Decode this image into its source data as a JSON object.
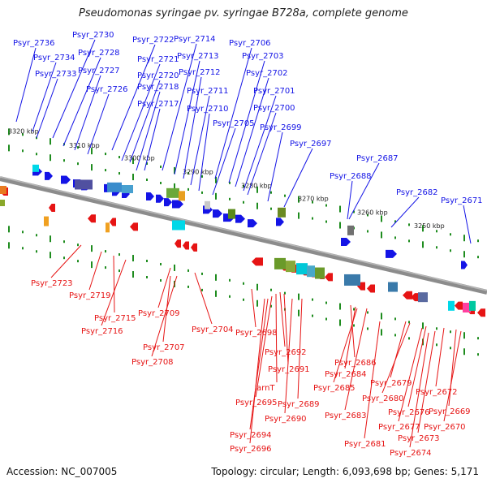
{
  "title": "Pseudomonas syringae pv. syringae B728a, complete genome",
  "footer": {
    "accession": "Accession: NC_007005",
    "summary": "Topology: circular; Length: 6,093,698 bp; Genes: 5,171"
  },
  "ruler": [
    "3320 kbp",
    "3310 kbp",
    "3300 kbp",
    "3290 kbp",
    "3280 kbp",
    "3270 kbp",
    "3260 kbp",
    "3250 kbp"
  ],
  "top_labels": [
    "Psyr_2736",
    "Psyr_2730",
    "Psyr_2722",
    "Psyr_2714",
    "Psyr_2706",
    "Psyr_2734",
    "Psyr_2728",
    "Psyr_2721",
    "Psyr_2713",
    "Psyr_2703",
    "Psyr_2727",
    "Psyr_2720",
    "Psyr_2712",
    "Psyr_2702",
    "Psyr_2733",
    "Psyr_2726",
    "Psyr_2718",
    "Psyr_2711",
    "Psyr_2701",
    "Psyr_2717",
    "Psyr_2710",
    "Psyr_2700",
    "Psyr_2705",
    "Psyr_2699",
    "Psyr_2697",
    "Psyr_2687",
    "Psyr_2688",
    "Psyr_2682",
    "Psyr_2671"
  ],
  "bottom_labels": [
    "Psyr_2723",
    "Psyr_2719",
    "Psyr_2715",
    "Psyr_2716",
    "Psyr_2709",
    "Psyr_2704",
    "Psyr_2707",
    "Psyr_2708",
    "Psyr_2698",
    "Psyr_2692",
    "Psyr_2691",
    "arnT",
    "Psyr_2695",
    "Psyr_2689",
    "Psyr_2690",
    "Psyr_2694",
    "Psyr_2696",
    "Psyr_2686",
    "Psyr_2684",
    "Psyr_2685",
    "Psyr_2683",
    "Psyr_2679",
    "Psyr_2680",
    "Psyr_2676",
    "Psyr_2677",
    "Psyr_2672",
    "Psyr_2669",
    "Psyr_2670",
    "Psyr_2673",
    "Psyr_2674",
    "Psyr_2681"
  ],
  "colors": {
    "forward": "#1414e6",
    "reverse": "#e61414",
    "backbone": "#8c8c8c",
    "tick": "#1e8c1e",
    "ruler": "#2a9a2a"
  }
}
